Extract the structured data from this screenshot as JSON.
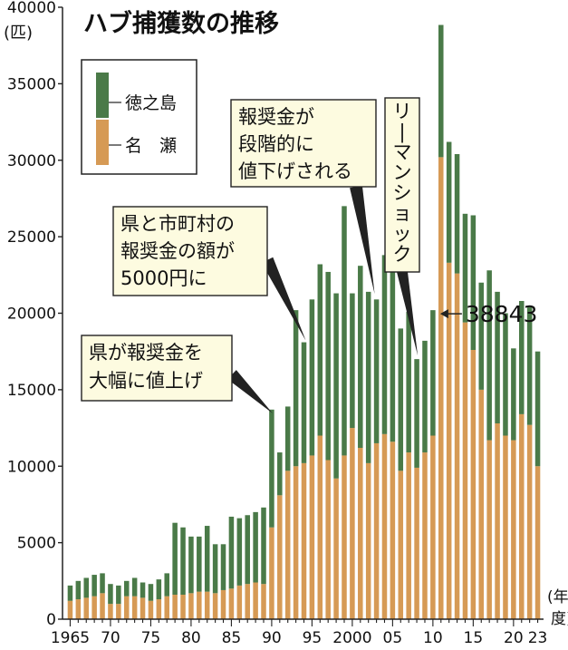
{
  "chart_data": {
    "type": "bar",
    "stacked": true,
    "title": "ハブ捕獲数の推移",
    "ylabel": "(匹)",
    "xlabel": "(年度)",
    "ylim": [
      0,
      40000
    ],
    "y_ticks": [
      0,
      5000,
      10000,
      15000,
      20000,
      25000,
      30000,
      35000,
      40000
    ],
    "y_tick_labels": [
      "0",
      "5000",
      "10000",
      "15000",
      "20000",
      "25000",
      "30000",
      "35000",
      "40000"
    ],
    "x": [
      1965,
      1966,
      1967,
      1968,
      1969,
      1970,
      1971,
      1972,
      1973,
      1974,
      1975,
      1976,
      1977,
      1978,
      1979,
      1980,
      1981,
      1982,
      1983,
      1984,
      1985,
      1986,
      1987,
      1988,
      1989,
      1990,
      1991,
      1992,
      1993,
      1994,
      1995,
      1996,
      1997,
      1998,
      1999,
      2000,
      2001,
      2002,
      2003,
      2004,
      2005,
      2006,
      2007,
      2008,
      2009,
      2010,
      2011,
      2012,
      2013,
      2014,
      2015,
      2016,
      2017,
      2018,
      2019,
      2020,
      2021,
      2022,
      2023
    ],
    "x_tick_labels": [
      {
        "year": 1965,
        "label": "1965"
      },
      {
        "year": 1970,
        "label": "70"
      },
      {
        "year": 1975,
        "label": "75"
      },
      {
        "year": 1980,
        "label": "80"
      },
      {
        "year": 1985,
        "label": "85"
      },
      {
        "year": 1990,
        "label": "90"
      },
      {
        "year": 1995,
        "label": "95"
      },
      {
        "year": 2000,
        "label": "2000"
      },
      {
        "year": 2005,
        "label": "05"
      },
      {
        "year": 2010,
        "label": "10"
      },
      {
        "year": 2015,
        "label": "15"
      },
      {
        "year": 2020,
        "label": "20"
      },
      {
        "year": 2023,
        "label": "23"
      }
    ],
    "series": [
      {
        "name": "名　瀬",
        "color": "#d69a55",
        "values": [
          1200,
          1300,
          1400,
          1500,
          1700,
          1000,
          1000,
          1500,
          1500,
          1400,
          1200,
          1300,
          1500,
          1600,
          1600,
          1700,
          1800,
          1800,
          1700,
          1900,
          2000,
          2200,
          2300,
          2400,
          2300,
          6000,
          8100,
          9700,
          10000,
          10200,
          10700,
          12000,
          10400,
          9200,
          10700,
          12500,
          11200,
          10200,
          11500,
          12100,
          11600,
          9700,
          10900,
          9900,
          10900,
          12000,
          30200,
          23300,
          22600,
          19400,
          17600,
          15000,
          11700,
          12800,
          12000,
          11700,
          13400,
          12700,
          10000
        ]
      },
      {
        "name": "徳之島",
        "color": "#4a7a48",
        "values": [
          1000,
          1200,
          1300,
          1400,
          1300,
          1300,
          1200,
          1000,
          1200,
          1000,
          1100,
          1300,
          1500,
          4700,
          4400,
          3700,
          3600,
          4300,
          3200,
          3000,
          4700,
          4400,
          4500,
          4600,
          5000,
          7700,
          2800,
          4200,
          10200,
          7900,
          10200,
          11200,
          12300,
          12100,
          16300,
          8800,
          11900,
          11200,
          9400,
          11700,
          12200,
          9300,
          9200,
          7100,
          7300,
          8200,
          8643,
          7900,
          7800,
          7100,
          8800,
          7000,
          11100,
          8600,
          8000,
          6000,
          7400,
          7700,
          7500
        ]
      }
    ],
    "legend": {
      "position": "top-left",
      "labels": [
        "徳之島",
        "名　瀬"
      ]
    },
    "annotations": [
      {
        "id": "a1",
        "lines": [
          "県が報奨金を",
          "大幅に値上げ"
        ],
        "target_year": 1990
      },
      {
        "id": "a2",
        "lines": [
          "県と市町村の",
          "報奨金の額が",
          "5000円に"
        ],
        "target_year": 1994
      },
      {
        "id": "a3",
        "lines": [
          "報奨金が",
          "段階的に",
          "値下げされる"
        ],
        "target_year": 2003
      },
      {
        "id": "a4",
        "lines": [
          "リーマンショック"
        ],
        "target_year": 2008,
        "vertical": true
      },
      {
        "id": "a5",
        "lines": [
          "38843"
        ],
        "target_year": 2010,
        "arrow": true
      }
    ],
    "grid": false
  },
  "colors": {
    "note_fill": "#fdfbe0",
    "axis": "#222222",
    "text": "#111111"
  }
}
